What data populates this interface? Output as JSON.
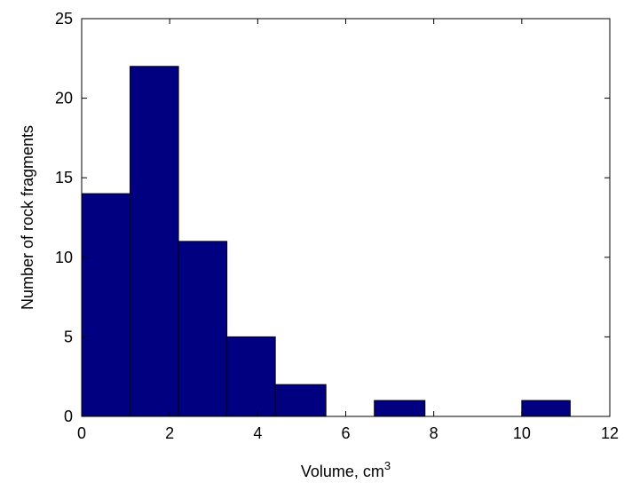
{
  "chart_data": {
    "type": "bar",
    "subtype": "histogram",
    "bins": [
      {
        "from": 0.0,
        "to": 1.1,
        "count": 14
      },
      {
        "from": 1.1,
        "to": 2.2,
        "count": 22
      },
      {
        "from": 2.2,
        "to": 3.3,
        "count": 11
      },
      {
        "from": 3.3,
        "to": 4.4,
        "count": 5
      },
      {
        "from": 4.4,
        "to": 5.55,
        "count": 2
      },
      {
        "from": 5.55,
        "to": 6.65,
        "count": 0
      },
      {
        "from": 6.65,
        "to": 7.8,
        "count": 1
      },
      {
        "from": 7.8,
        "to": 8.9,
        "count": 0
      },
      {
        "from": 8.9,
        "to": 10.0,
        "count": 0
      },
      {
        "from": 10.0,
        "to": 11.1,
        "count": 1
      }
    ],
    "xlabel": "Volume, cm",
    "xlabel_superscript": "3",
    "ylabel": "Number of rock fragments",
    "xlim": [
      0,
      12
    ],
    "ylim": [
      0,
      25
    ],
    "xticks": [
      0,
      2,
      4,
      6,
      8,
      10,
      12
    ],
    "yticks": [
      0,
      5,
      10,
      15,
      20,
      25
    ],
    "grid": false,
    "legend": "none",
    "bar_color": "#000080",
    "edge_color": "#000000"
  }
}
